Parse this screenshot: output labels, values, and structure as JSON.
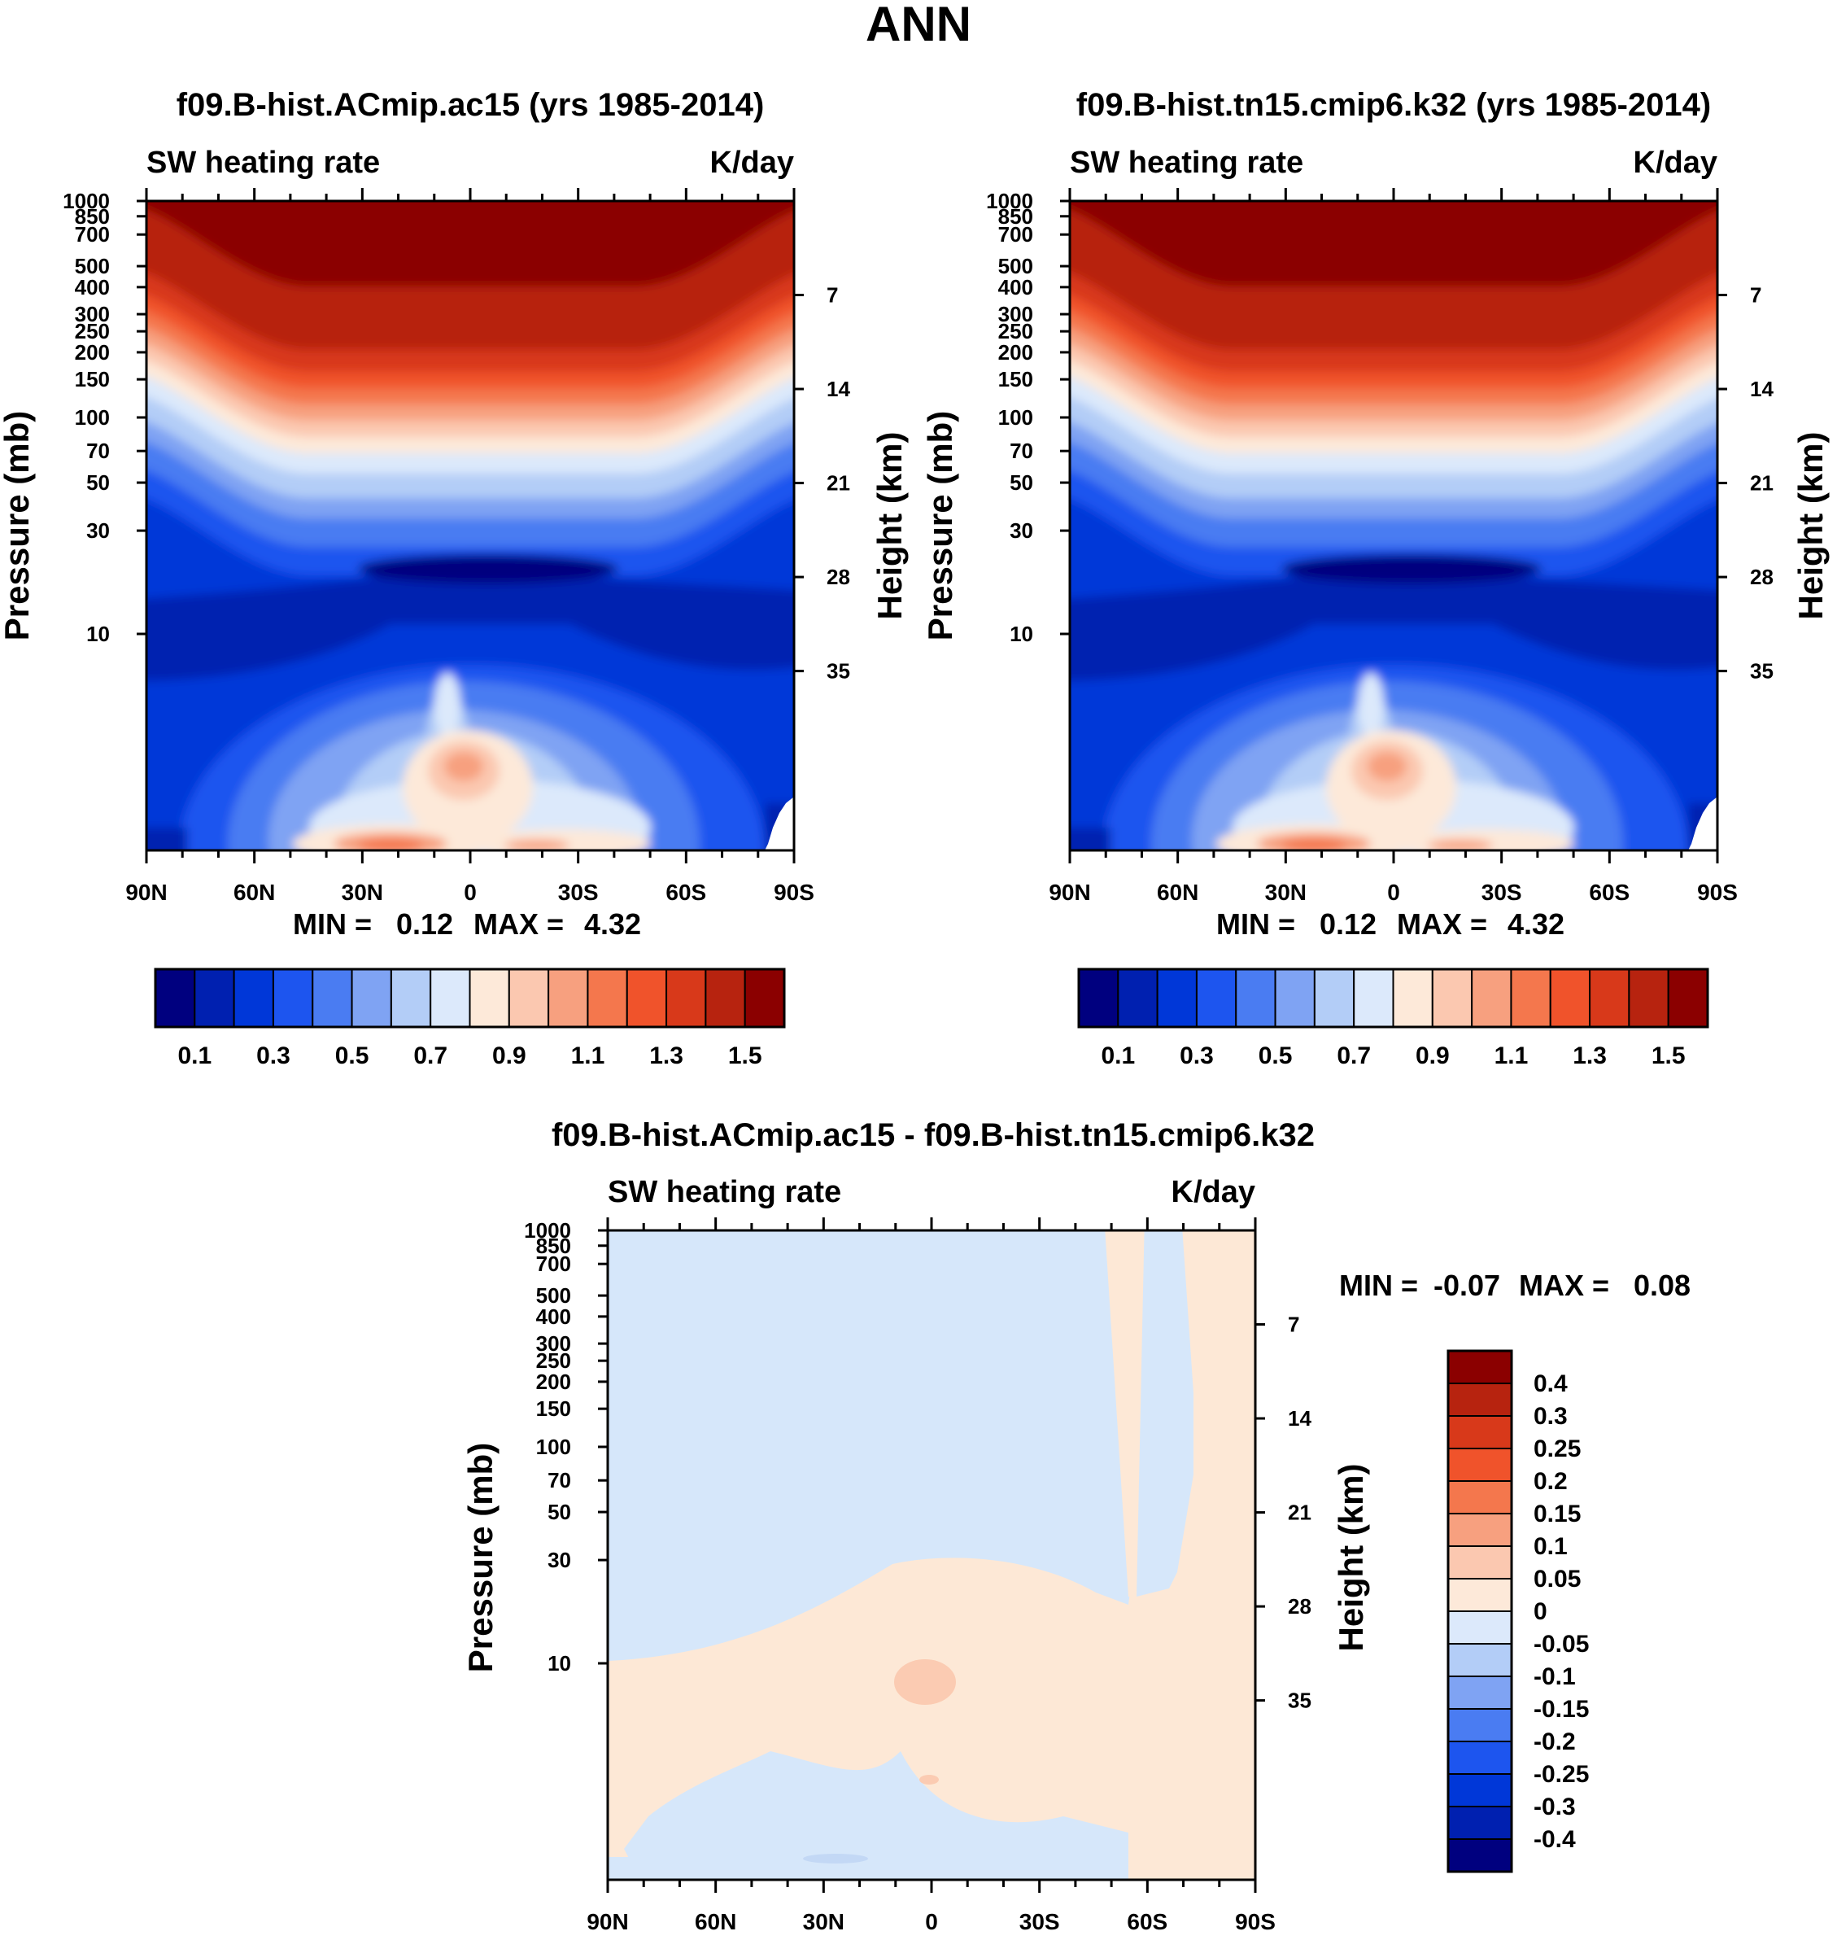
{
  "figure_title": "ANN",
  "pressure_ticks": [
    "10",
    "30",
    "50",
    "70",
    "100",
    "150",
    "200",
    "250",
    "300",
    "400",
    "500",
    "700",
    "850",
    "1000"
  ],
  "height_ticks": [
    "35",
    "28",
    "21",
    "14",
    "7"
  ],
  "lat_ticks": [
    "90N",
    "60N",
    "30N",
    "0",
    "30S",
    "60S",
    "90S"
  ],
  "colors_main": [
    "#00007f",
    "#0020b0",
    "#0037d8",
    "#1d55ef",
    "#4a7cf2",
    "#7fa3f3",
    "#b3cdf7",
    "#dce9fb",
    "#fde9d9",
    "#fbc8b0",
    "#f7a07f",
    "#f4774d",
    "#f0532b",
    "#d8391a",
    "#b7230f",
    "#8b0000"
  ],
  "colorbar_main": {
    "labels": [
      "0.1",
      "0.3",
      "0.5",
      "0.7",
      "0.9",
      "1.1",
      "1.3",
      "1.5"
    ]
  },
  "colorbar_diff": {
    "labels": [
      "0.4",
      "0.3",
      "0.25",
      "0.2",
      "0.15",
      "0.1",
      "0.05",
      "0",
      "-0.05",
      "-0.1",
      "-0.15",
      "-0.2",
      "-0.25",
      "-0.3",
      "-0.4"
    ]
  },
  "chart_data": [
    {
      "type": "heatmap",
      "title": "f09.B-hist.ACmip.ac15 (yrs 1985-2014)",
      "left_string": "SW heating rate",
      "right_string": "K/day",
      "xlabel": "",
      "ylabel": "Pressure (mb)",
      "ylabel_right": "Height (km)",
      "x_range": [
        "90N",
        "90S"
      ],
      "y_range_mb": [
        1000,
        1
      ],
      "min_label": "MIN = ",
      "min_value": "0.12",
      "max_label": "MAX = ",
      "max_value": "4.32",
      "levels": [
        0.1,
        0.2,
        0.3,
        0.4,
        0.5,
        0.6,
        0.7,
        0.8,
        0.9,
        1.0,
        1.1,
        1.2,
        1.3,
        1.4,
        1.5
      ]
    },
    {
      "type": "heatmap",
      "title": "f09.B-hist.tn15.cmip6.k32 (yrs 1985-2014)",
      "left_string": "SW heating rate",
      "right_string": "K/day",
      "xlabel": "",
      "ylabel": "Pressure (mb)",
      "ylabel_right": "Height (km)",
      "x_range": [
        "90N",
        "90S"
      ],
      "y_range_mb": [
        1000,
        1
      ],
      "min_label": "MIN = ",
      "min_value": "0.12",
      "max_label": "MAX = ",
      "max_value": "4.32",
      "levels": [
        0.1,
        0.2,
        0.3,
        0.4,
        0.5,
        0.6,
        0.7,
        0.8,
        0.9,
        1.0,
        1.1,
        1.2,
        1.3,
        1.4,
        1.5
      ]
    },
    {
      "type": "heatmap",
      "title": "f09.B-hist.ACmip.ac15 - f09.B-hist.tn15.cmip6.k32",
      "left_string": "SW heating rate",
      "right_string": "K/day",
      "xlabel": "",
      "ylabel": "Pressure (mb)",
      "ylabel_right": "Height (km)",
      "x_range": [
        "90N",
        "90S"
      ],
      "y_range_mb": [
        1000,
        1
      ],
      "min_label": "MIN = ",
      "min_value": "-0.07",
      "max_label": "MAX = ",
      "max_value": "0.08",
      "levels": [
        -0.4,
        -0.3,
        -0.25,
        -0.2,
        -0.15,
        -0.1,
        -0.05,
        0,
        0.05,
        0.1,
        0.15,
        0.2,
        0.25,
        0.3,
        0.4
      ]
    }
  ]
}
